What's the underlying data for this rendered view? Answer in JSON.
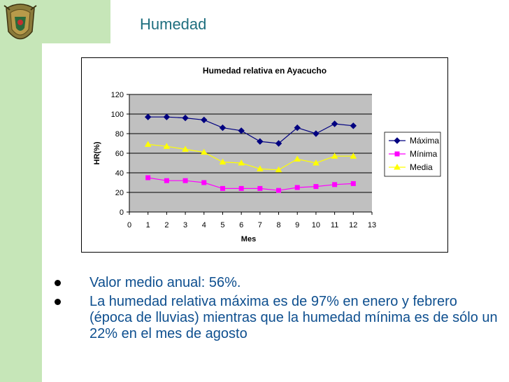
{
  "slide": {
    "title": "Humedad",
    "bullets": [
      "Valor medio anual: 56%.",
      "La humedad relativa máxima es de 97% en enero y febrero (época de lluvias) mientras que la humedad mínima es de sólo un 22% en el mes de agosto"
    ]
  },
  "chart_data": {
    "type": "line",
    "title": "Humedad relativa en Ayacucho",
    "xlabel": "Mes",
    "ylabel": "HR(%)",
    "xlim": [
      0,
      13
    ],
    "ylim": [
      0,
      120
    ],
    "xticks": [
      0,
      1,
      2,
      3,
      4,
      5,
      6,
      7,
      8,
      9,
      10,
      11,
      12,
      13
    ],
    "yticks": [
      0,
      20,
      40,
      60,
      80,
      100,
      120
    ],
    "grid": "horizontal",
    "legend": "right",
    "x": [
      1,
      2,
      3,
      4,
      5,
      6,
      7,
      8,
      9,
      10,
      11,
      12
    ],
    "series": [
      {
        "name": "Máxima",
        "marker": "diamond",
        "color": "#000080",
        "values": [
          97,
          97,
          96,
          94,
          86,
          83,
          72,
          70,
          86,
          80,
          90,
          88
        ]
      },
      {
        "name": "Mínima",
        "marker": "square",
        "color": "#ff00ff",
        "values": [
          35,
          32,
          32,
          30,
          24,
          24,
          24,
          22,
          25,
          26,
          28,
          29
        ]
      },
      {
        "name": "Media",
        "marker": "triangle",
        "color": "#ffff00",
        "values": [
          69,
          67,
          64,
          61,
          51,
          50,
          44,
          43,
          54,
          50,
          57,
          57
        ]
      }
    ]
  }
}
